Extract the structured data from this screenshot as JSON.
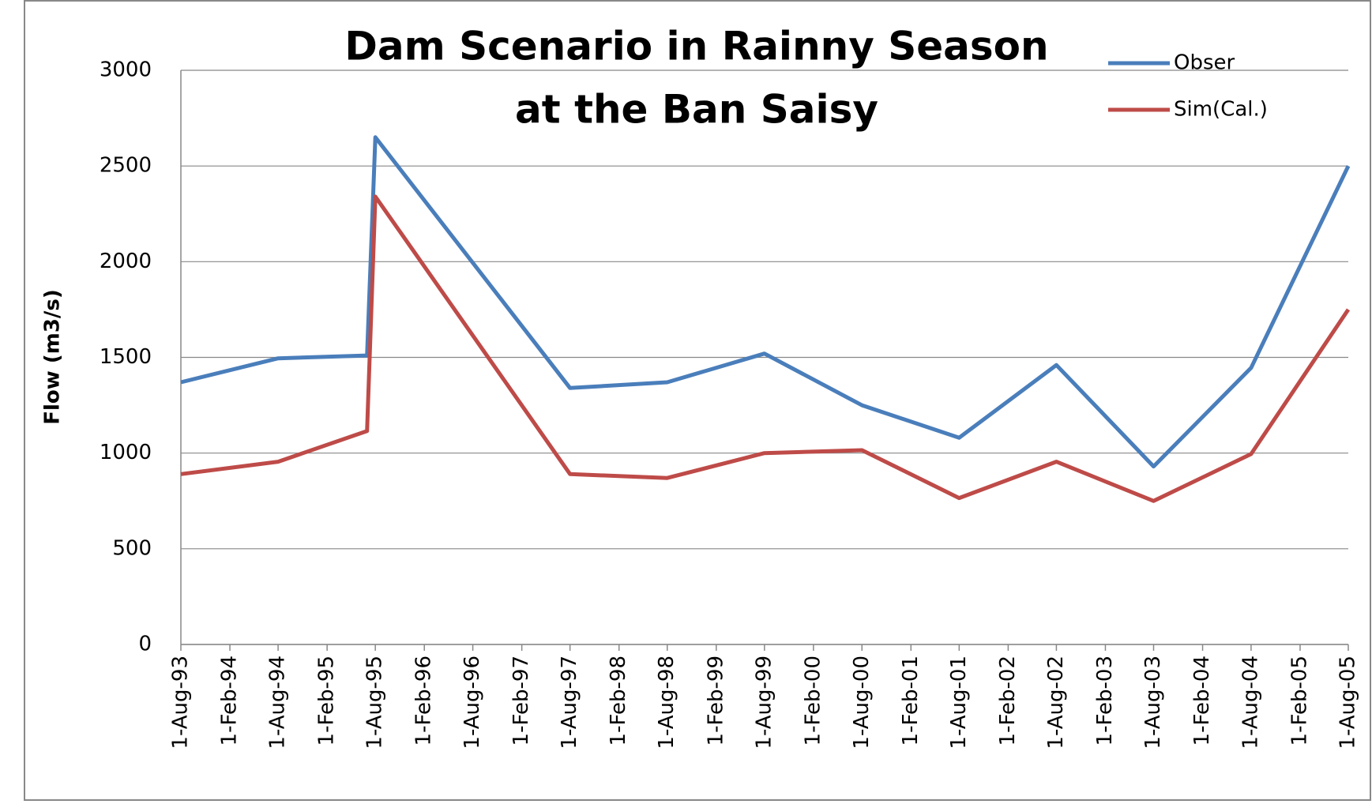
{
  "chart_data": {
    "type": "line",
    "title": [
      "Dam Scenario in Rainny Season",
      "at the Ban Saisy"
    ],
    "y_label": "Flow (m3/s)",
    "x": [
      "1993-08-01",
      "1994-08-01",
      "1995-07-01",
      "1995-08-01",
      "1997-08-01",
      "1998-08-01",
      "1999-08-01",
      "2000-08-01",
      "2001-08-01",
      "2002-08-01",
      "2003-08-01",
      "2004-08-01",
      "2005-08-01"
    ],
    "series": [
      {
        "name": "Obser",
        "color": "#4a7ebb",
        "values": [
          1370,
          1495,
          1510,
          2650,
          1340,
          1370,
          1520,
          1250,
          1080,
          1460,
          930,
          1445,
          2500
        ]
      },
      {
        "name": "Sim(Cal.)",
        "color": "#be4b48",
        "values": [
          890,
          955,
          1115,
          2340,
          890,
          870,
          1000,
          1015,
          765,
          955,
          750,
          995,
          1750
        ]
      }
    ],
    "xlim": [
      "1993-08-01",
      "2005-08-01"
    ],
    "xticks": [
      {
        "value": "1993-08-01",
        "label": "1-Aug-93"
      },
      {
        "value": "1994-02-01",
        "label": "1-Feb-94"
      },
      {
        "value": "1994-08-01",
        "label": "1-Aug-94"
      },
      {
        "value": "1995-02-01",
        "label": "1-Feb-95"
      },
      {
        "value": "1995-08-01",
        "label": "1-Aug-95"
      },
      {
        "value": "1996-02-01",
        "label": "1-Feb-96"
      },
      {
        "value": "1996-08-01",
        "label": "1-Aug-96"
      },
      {
        "value": "1997-02-01",
        "label": "1-Feb-97"
      },
      {
        "value": "1997-08-01",
        "label": "1-Aug-97"
      },
      {
        "value": "1998-02-01",
        "label": "1-Feb-98"
      },
      {
        "value": "1998-08-01",
        "label": "1-Aug-98"
      },
      {
        "value": "1999-02-01",
        "label": "1-Feb-99"
      },
      {
        "value": "1999-08-01",
        "label": "1-Aug-99"
      },
      {
        "value": "2000-02-01",
        "label": "1-Feb-00"
      },
      {
        "value": "2000-08-01",
        "label": "1-Aug-00"
      },
      {
        "value": "2001-02-01",
        "label": "1-Feb-01"
      },
      {
        "value": "2001-08-01",
        "label": "1-Aug-01"
      },
      {
        "value": "2002-02-01",
        "label": "1-Feb-02"
      },
      {
        "value": "2002-08-01",
        "label": "1-Aug-02"
      },
      {
        "value": "2003-02-01",
        "label": "1-Feb-03"
      },
      {
        "value": "2003-08-01",
        "label": "1-Aug-03"
      },
      {
        "value": "2004-02-01",
        "label": "1-Feb-04"
      },
      {
        "value": "2004-08-01",
        "label": "1-Aug-04"
      },
      {
        "value": "2005-02-01",
        "label": "1-Feb-05"
      },
      {
        "value": "2005-08-01",
        "label": "1-Aug-05"
      }
    ],
    "ylim": [
      0,
      3000
    ],
    "yticks": [
      0,
      500,
      1000,
      1500,
      2000,
      2500,
      3000
    ],
    "grid": true,
    "legend": "top-right"
  }
}
